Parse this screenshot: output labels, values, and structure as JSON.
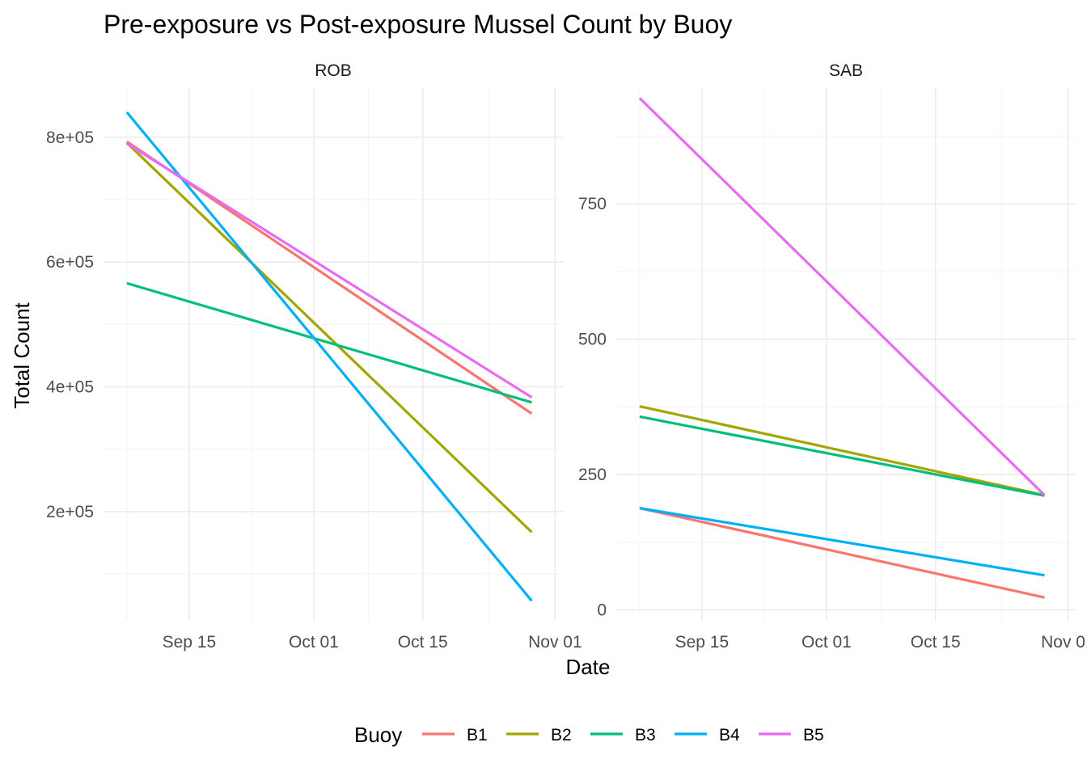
{
  "chart_data": {
    "type": "line",
    "title": "Pre-exposure vs Post-exposure Mussel Count by Buoy",
    "xlabel": "Date",
    "ylabel": "Total Count",
    "legend": {
      "title": "Buoy",
      "position": "bottom"
    },
    "grid": true,
    "x_ticks": [
      "Sep 15",
      "Oct 01",
      "Oct 15",
      "Nov 01"
    ],
    "x_tick_dates": [
      "2023-09-15",
      "2023-10-01",
      "2023-10-15",
      "2023-11-01"
    ],
    "xlim": [
      "2023-09-04",
      "2023-11-02"
    ],
    "x": [
      "2023-09-07",
      "2023-10-29"
    ],
    "series_styles": [
      {
        "name": "B1",
        "color": "#F8766D"
      },
      {
        "name": "B2",
        "color": "#A3A500"
      },
      {
        "name": "B3",
        "color": "#00BF7D"
      },
      {
        "name": "B4",
        "color": "#00B0F6"
      },
      {
        "name": "B5",
        "color": "#E76BF3"
      }
    ],
    "panels": [
      {
        "strip": "ROB",
        "ylim": [
          25000,
          880000
        ],
        "y_ticks": [
          200000,
          400000,
          600000,
          800000
        ],
        "y_tick_labels": [
          "2e+05",
          "4e+05",
          "6e+05",
          "8e+05"
        ],
        "series": [
          {
            "name": "B1",
            "values": [
              793000,
              357000
            ]
          },
          {
            "name": "B2",
            "values": [
              791000,
              167000
            ]
          },
          {
            "name": "B3",
            "values": [
              566000,
              375000
            ]
          },
          {
            "name": "B4",
            "values": [
              840000,
              57000
            ]
          },
          {
            "name": "B5",
            "values": [
              790000,
              383000
            ]
          }
        ]
      },
      {
        "strip": "SAB",
        "ylim": [
          -20,
          965
        ],
        "y_ticks": [
          0,
          250,
          500,
          750
        ],
        "y_tick_labels": [
          "0",
          "250",
          "500",
          "750"
        ],
        "series": [
          {
            "name": "B1",
            "values": [
              188,
              23
            ]
          },
          {
            "name": "B2",
            "values": [
              376,
              212
            ]
          },
          {
            "name": "B3",
            "values": [
              357,
              211
            ]
          },
          {
            "name": "B4",
            "values": [
              188,
              64
            ]
          },
          {
            "name": "B5",
            "values": [
              945,
              212
            ]
          }
        ]
      }
    ]
  }
}
